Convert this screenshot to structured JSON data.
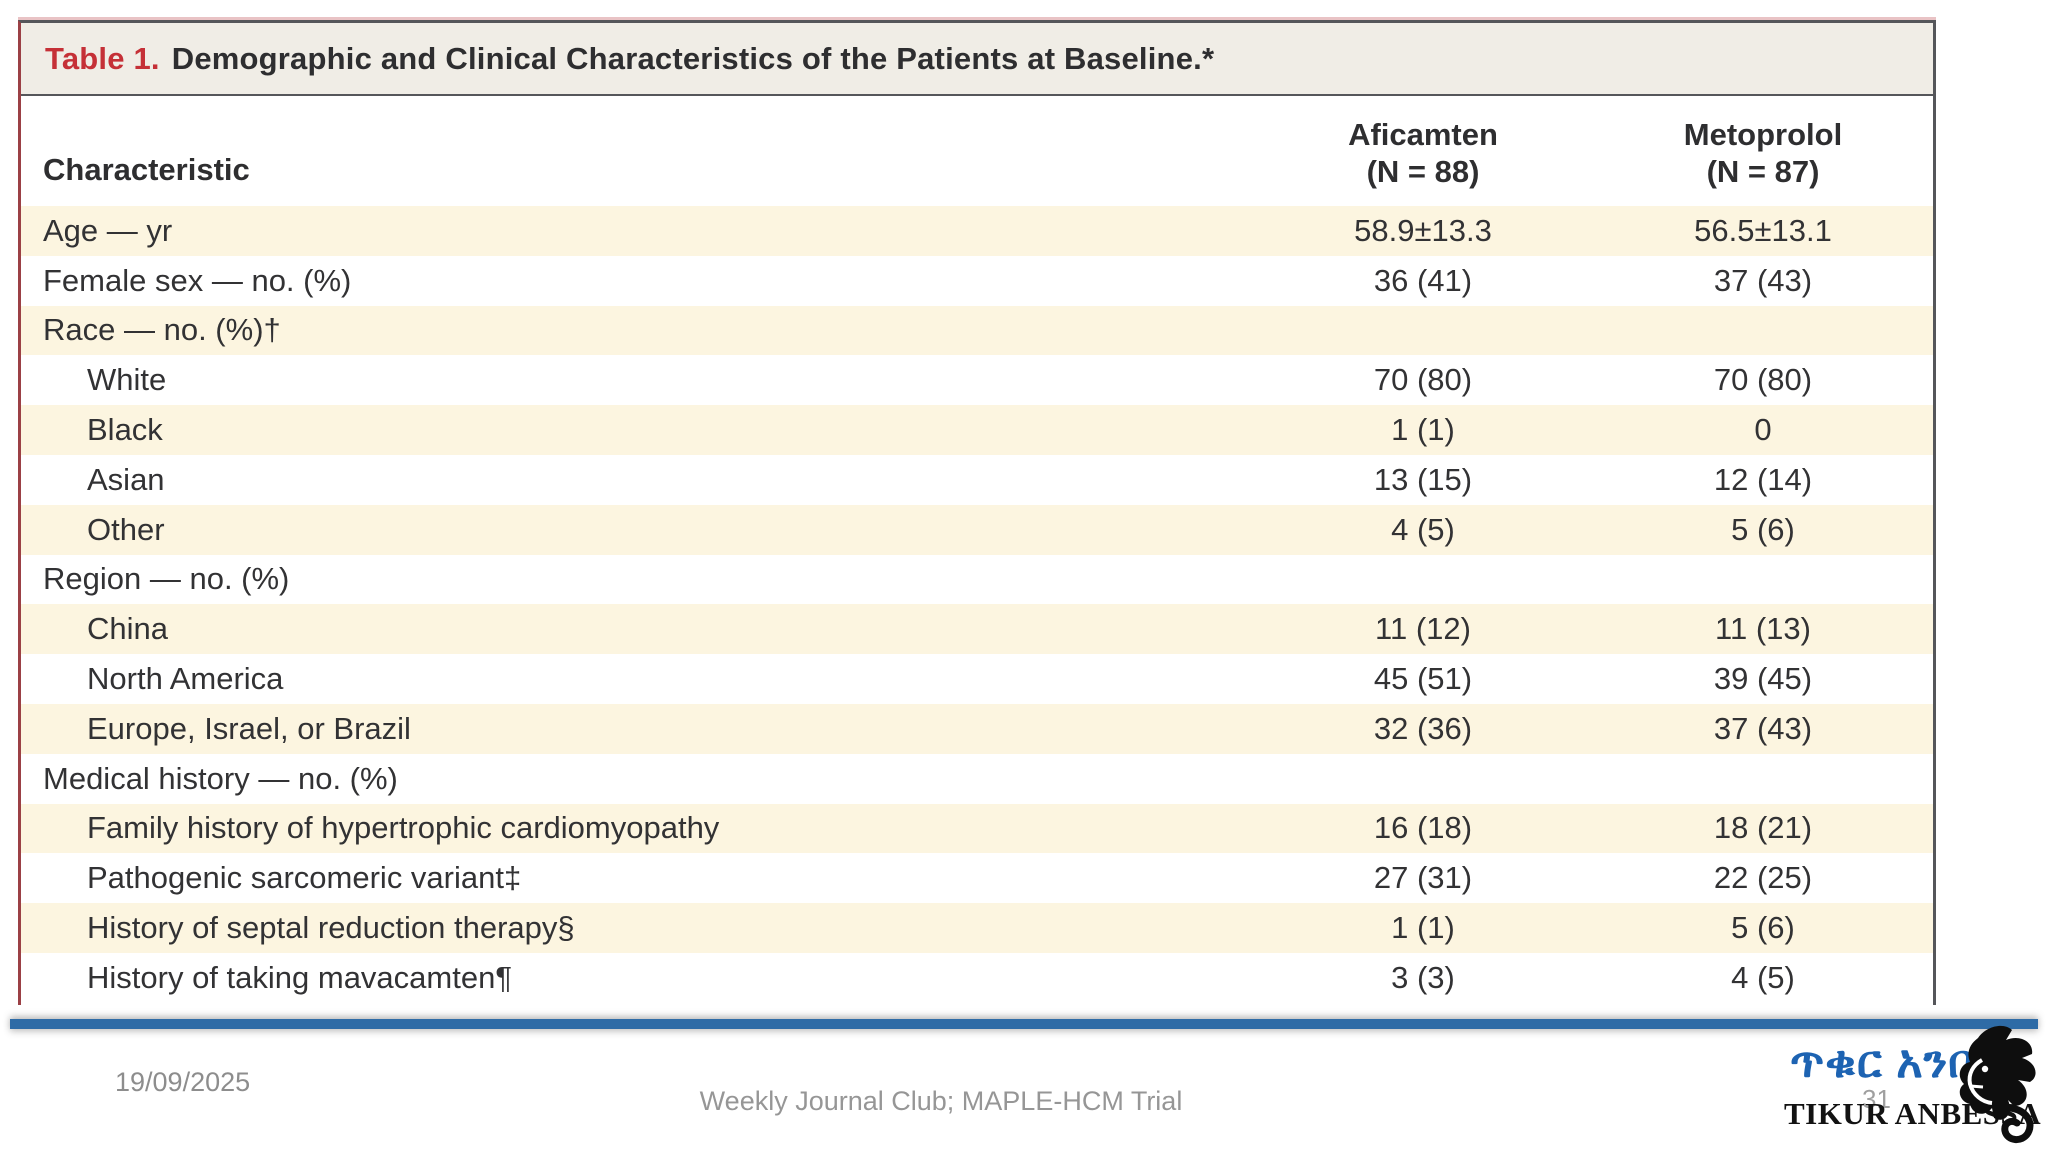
{
  "table": {
    "title_prefix": "Table 1.",
    "title_text": "Demographic and Clinical Characteristics of the Patients at Baseline.*",
    "columns": {
      "characteristic": "Characteristic",
      "col1_line1": "Aficamten",
      "col1_line2": "(N = 88)",
      "col2_line1": "Metoprolol",
      "col2_line2": "(N = 87)"
    },
    "rows": [
      {
        "label": "Age — yr",
        "indent": false,
        "v1": "58.9±13.3",
        "v2": "56.5±13.1"
      },
      {
        "label": "Female sex — no. (%)",
        "indent": false,
        "v1": "36 (41)",
        "v2": "37 (43)"
      },
      {
        "label": "Race — no. (%)†",
        "indent": false,
        "v1": "",
        "v2": ""
      },
      {
        "label": "White",
        "indent": true,
        "v1": "70 (80)",
        "v2": "70 (80)"
      },
      {
        "label": "Black",
        "indent": true,
        "v1": "1 (1)",
        "v2": "0"
      },
      {
        "label": "Asian",
        "indent": true,
        "v1": "13 (15)",
        "v2": "12 (14)"
      },
      {
        "label": "Other",
        "indent": true,
        "v1": "4 (5)",
        "v2": "5 (6)"
      },
      {
        "label": "Region — no. (%)",
        "indent": false,
        "v1": "",
        "v2": ""
      },
      {
        "label": "China",
        "indent": true,
        "v1": "11 (12)",
        "v2": "11 (13)"
      },
      {
        "label": "North America",
        "indent": true,
        "v1": "45 (51)",
        "v2": "39 (45)"
      },
      {
        "label": "Europe, Israel, or Brazil",
        "indent": true,
        "v1": "32 (36)",
        "v2": "37 (43)"
      },
      {
        "label": "Medical history — no. (%)",
        "indent": false,
        "v1": "",
        "v2": ""
      },
      {
        "label": "Family history of hypertrophic cardiomyopathy",
        "indent": true,
        "v1": "16 (18)",
        "v2": "18 (21)"
      },
      {
        "label": "Pathogenic sarcomeric variant‡",
        "indent": true,
        "v1": "27 (31)",
        "v2": "22 (25)"
      },
      {
        "label": "History of septal reduction therapy§",
        "indent": true,
        "v1": "1 (1)",
        "v2": "5 (6)"
      },
      {
        "label": "History of taking mavacamten¶",
        "indent": true,
        "v1": "3 (3)",
        "v2": "4 (5)"
      }
    ]
  },
  "footer": {
    "date": "19/09/2025",
    "center": "Weekly Journal Club; MAPLE-HCM Trial",
    "slide_number": "31"
  },
  "logo": {
    "amharic": "ጥቁር አንበሳ",
    "latin": "TIKUR ANBESSA",
    "lion_icon": "lion-head-icon"
  },
  "colors": {
    "stripe_cream": "#fcf5e0",
    "title_bar_bg": "#f0ede6",
    "table_border_gray": "#55565a",
    "table_border_red": "#9b4045",
    "title_red": "#c53037",
    "divider_blue": "#2e6ba6",
    "logo_blue": "#1d63b2",
    "footer_gray": "#8d8d8d"
  }
}
